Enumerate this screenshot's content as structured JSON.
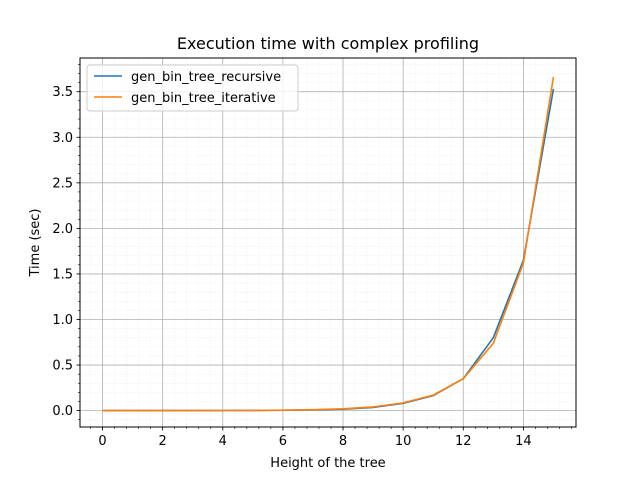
{
  "chart_data": {
    "type": "line",
    "title": "Execution time with complex profiling",
    "xlabel": "Height of the tree",
    "ylabel": "Time (sec)",
    "xlim": [
      -0.75,
      15.75
    ],
    "ylim": [
      -0.18,
      3.87
    ],
    "xticks": [
      0,
      2,
      4,
      6,
      8,
      10,
      12,
      14
    ],
    "xtick_labels": [
      "0",
      "2",
      "4",
      "6",
      "8",
      "10",
      "12",
      "14"
    ],
    "yticks": [
      0.0,
      0.5,
      1.0,
      1.5,
      2.0,
      2.5,
      3.0,
      3.5
    ],
    "ytick_labels": [
      "0.0",
      "0.5",
      "1.0",
      "1.5",
      "2.0",
      "2.5",
      "3.0",
      "3.5"
    ],
    "grid": true,
    "minor_grid": true,
    "legend_position": "upper-left",
    "x": [
      0,
      1,
      2,
      3,
      4,
      5,
      6,
      7,
      8,
      9,
      10,
      11,
      12,
      13,
      14,
      15
    ],
    "series": [
      {
        "name": "gen_bin_tree_recursive",
        "color": "#1f77b4",
        "values": [
          0.0,
          0.0,
          0.0,
          0.0,
          0.001,
          0.002,
          0.004,
          0.008,
          0.015,
          0.035,
          0.08,
          0.165,
          0.35,
          0.8,
          1.65,
          3.53
        ]
      },
      {
        "name": "gen_bin_tree_iterative",
        "color": "#ff7f0e",
        "values": [
          0.0,
          0.0,
          0.0,
          0.0,
          0.001,
          0.002,
          0.005,
          0.01,
          0.02,
          0.04,
          0.085,
          0.17,
          0.35,
          0.74,
          1.62,
          3.66
        ]
      }
    ]
  }
}
